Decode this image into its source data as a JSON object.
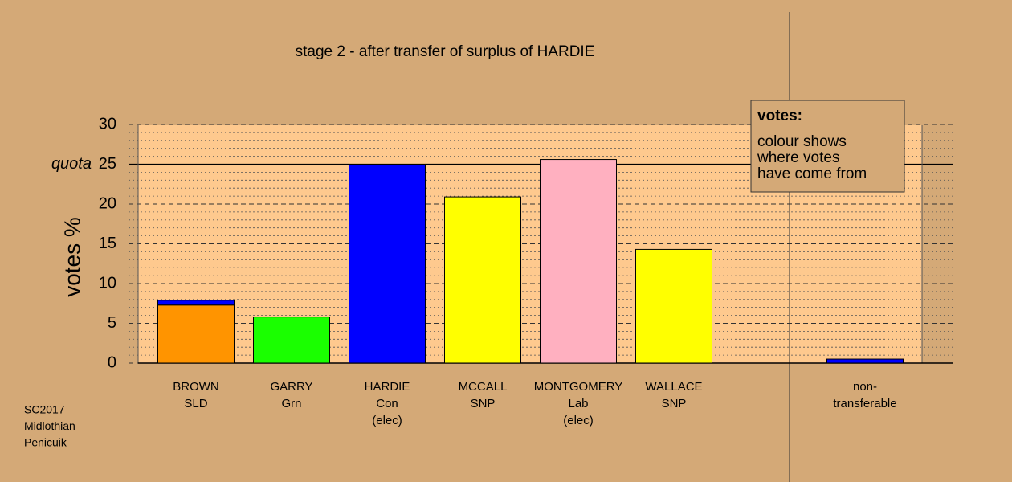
{
  "chart_data": {
    "type": "stacked_bar",
    "title": "stage 2 - after transfer of surplus of HARDIE",
    "y_label": "votes %",
    "quota": 25,
    "quota_label": "quota",
    "ylim": [
      0,
      30
    ],
    "yticks": [
      0,
      5,
      10,
      15,
      20,
      25,
      30
    ],
    "minor_yticks": [
      1,
      2,
      3,
      4,
      6,
      7,
      8,
      9,
      11,
      12,
      13,
      14,
      16,
      17,
      18,
      19,
      21,
      22,
      23,
      24,
      26,
      27,
      28,
      29
    ],
    "categories": [
      [
        "BROWN",
        "SLD"
      ],
      [
        "GARRY",
        "Grn"
      ],
      [
        "HARDIE",
        "Con",
        "(elec)"
      ],
      [
        "MCCALL",
        "SNP"
      ],
      [
        "MONTGOMERY",
        "Lab",
        "(elec)"
      ],
      [
        "WALLACE",
        "SNP"
      ],
      null,
      [
        "non-",
        "transferable"
      ]
    ],
    "bars": [
      {
        "segments": [
          {
            "value": 7.3,
            "color": "#ff9400"
          },
          {
            "value": 0.6,
            "color": "#0000ff"
          }
        ]
      },
      {
        "segments": [
          {
            "value": 5.8,
            "color": "#1aff00"
          }
        ]
      },
      {
        "segments": [
          {
            "value": 25.0,
            "color": "#0000ff"
          }
        ]
      },
      {
        "segments": [
          {
            "value": 20.9,
            "color": "#ffff00"
          }
        ]
      },
      {
        "segments": [
          {
            "value": 25.6,
            "color": "#ffb0c0"
          }
        ]
      },
      {
        "segments": [
          {
            "value": 14.3,
            "color": "#ffff00"
          }
        ]
      },
      {
        "segments": []
      },
      {
        "segments": [
          {
            "value": 0.5,
            "color": "#0000ff"
          }
        ]
      }
    ],
    "legend": {
      "title": "votes:",
      "lines": [
        "colour shows",
        "where votes",
        "have come from"
      ]
    },
    "footnote": [
      "SC2017",
      "Midlothian",
      "Penicuik"
    ]
  }
}
